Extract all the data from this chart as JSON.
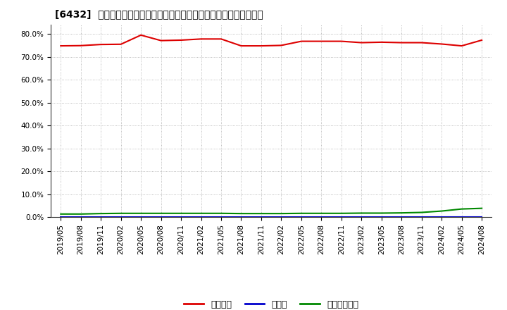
{
  "title": "[6432]  自己資本、のれん、繰延税金資産の総資産に対する比率の推移",
  "x_labels": [
    "2019/05",
    "2019/08",
    "2019/11",
    "2020/02",
    "2020/05",
    "2020/08",
    "2020/11",
    "2021/02",
    "2021/05",
    "2021/08",
    "2021/11",
    "2022/02",
    "2022/05",
    "2022/08",
    "2022/11",
    "2023/02",
    "2023/05",
    "2023/08",
    "2023/11",
    "2024/02",
    "2024/05",
    "2024/08"
  ],
  "equity": [
    0.748,
    0.749,
    0.754,
    0.755,
    0.795,
    0.771,
    0.773,
    0.778,
    0.778,
    0.748,
    0.748,
    0.75,
    0.768,
    0.768,
    0.768,
    0.762,
    0.764,
    0.762,
    0.762,
    0.756,
    0.748,
    0.773
  ],
  "noren": [
    0.0,
    0.0,
    0.0,
    0.0,
    0.0,
    0.0,
    0.0,
    0.0,
    0.0,
    0.0,
    0.0,
    0.0,
    0.0,
    0.0,
    0.0,
    0.0,
    0.0,
    0.0,
    0.0,
    0.0,
    0.0,
    0.0
  ],
  "deferred_tax": [
    0.013,
    0.013,
    0.015,
    0.016,
    0.016,
    0.016,
    0.016,
    0.016,
    0.016,
    0.015,
    0.015,
    0.015,
    0.016,
    0.016,
    0.016,
    0.017,
    0.017,
    0.018,
    0.02,
    0.026,
    0.035,
    0.038
  ],
  "equity_color": "#dd0000",
  "noren_color": "#0000cc",
  "deferred_tax_color": "#008800",
  "bg_color": "#ffffff",
  "grid_color": "#aaaaaa",
  "ylim": [
    0.0,
    0.84
  ],
  "yticks": [
    0.0,
    0.1,
    0.2,
    0.3,
    0.4,
    0.5,
    0.6,
    0.7,
    0.8
  ],
  "legend_labels": [
    "自己資本",
    "のれん",
    "繰延税金資産"
  ],
  "title_fontsize": 11,
  "tick_fontsize": 7.5,
  "legend_fontsize": 9
}
